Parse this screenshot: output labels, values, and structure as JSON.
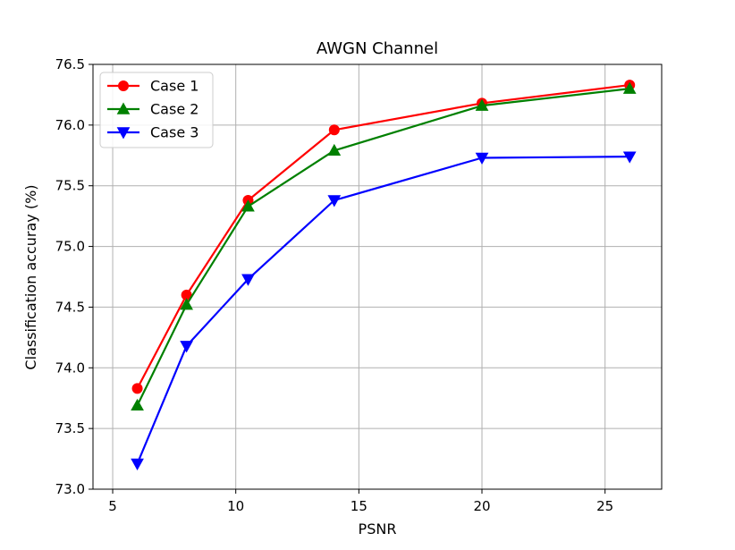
{
  "chart_data": {
    "type": "line",
    "title": "AWGN Channel",
    "xlabel": "PSNR",
    "ylabel": "Classification accuray (%)",
    "xlim": [
      4.2,
      27.3
    ],
    "ylim": [
      73.0,
      76.5
    ],
    "xticks": [
      5,
      10,
      15,
      20,
      25
    ],
    "yticks": [
      73.0,
      73.5,
      74.0,
      74.5,
      75.0,
      75.5,
      76.0,
      76.5
    ],
    "grid": true,
    "legend_position": "top-left",
    "x": [
      6,
      8,
      10.5,
      14,
      20,
      26
    ],
    "series": [
      {
        "name": "Case 1",
        "color": "#ff0000",
        "marker": "circle",
        "values": [
          73.83,
          74.6,
          75.38,
          75.96,
          76.18,
          76.33
        ]
      },
      {
        "name": "Case 2",
        "color": "#008000",
        "marker": "triangle-up",
        "values": [
          73.69,
          74.52,
          75.33,
          75.79,
          76.16,
          76.3
        ]
      },
      {
        "name": "Case 3",
        "color": "#0000ff",
        "marker": "triangle-down",
        "values": [
          73.21,
          74.18,
          74.73,
          75.38,
          75.73,
          75.74
        ]
      }
    ]
  }
}
